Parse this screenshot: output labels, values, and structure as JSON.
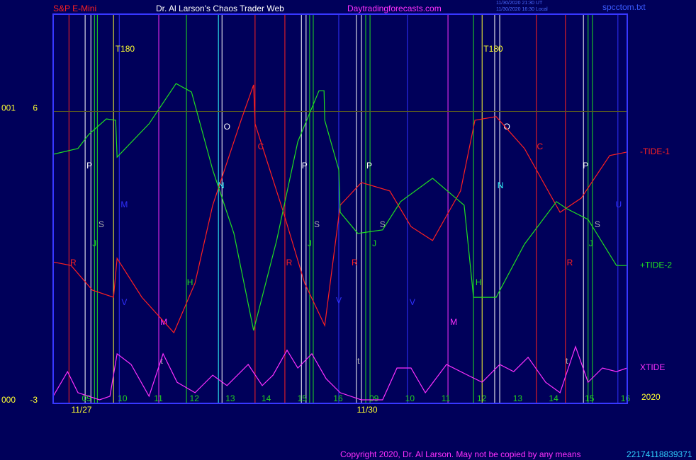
{
  "chart_data": {
    "type": "line",
    "header": {
      "symbol": "S&P E-Mini",
      "site_title": "Dr. Al Larson's Chaos Trader Web",
      "url": "Daytradingforecasts.com",
      "time_ut": "11/30/2020 21:30 UT",
      "time_local": "11/30/2020 16:30 Local",
      "file": "spcctom.txt"
    },
    "footer": {
      "copyright": "Copyright 2020, Dr. Al Larson. May not be copied by any means",
      "code": "22174118839371"
    },
    "xlim": [
      -0.93,
      15.05
    ],
    "ylim": [
      -3,
      9
    ],
    "yticks": [
      -3,
      6
    ],
    "ytick_codes": [
      "000",
      "001"
    ],
    "grid": true,
    "grid_color": "#5a5a20",
    "xticks": [
      {
        "value": 0,
        "label": "09"
      },
      {
        "value": 1,
        "label": "10"
      },
      {
        "value": 2,
        "label": "11"
      },
      {
        "value": 3,
        "label": "12"
      },
      {
        "value": 4,
        "label": "13"
      },
      {
        "value": 5,
        "label": "14"
      },
      {
        "value": 6,
        "label": "15"
      },
      {
        "value": 7,
        "label": "16"
      },
      {
        "value": 8,
        "label": "09"
      },
      {
        "value": 9,
        "label": "10"
      },
      {
        "value": 10,
        "label": "11"
      },
      {
        "value": 11,
        "label": "12"
      },
      {
        "value": 12,
        "label": "13"
      },
      {
        "value": 13,
        "label": "14"
      },
      {
        "value": 14,
        "label": "15"
      },
      {
        "value": 15,
        "label": "16"
      }
    ],
    "dates": [
      {
        "value": -0.14,
        "label": "11/27"
      },
      {
        "value": 7.81,
        "label": "11/30"
      }
    ],
    "year": "2020",
    "series": [
      {
        "name": "-TIDE-1",
        "color": "#ff2020",
        "x": [
          -0.93,
          -0.43,
          0.16,
          0.75,
          0.85,
          1.54,
          2.43,
          3.02,
          3.51,
          4.3,
          4.65,
          4.69,
          5.48,
          6.07,
          6.63,
          7.06,
          7.65,
          8.44,
          9.03,
          9.63,
          10.41,
          10.81,
          11.4,
          12.19,
          13.18,
          13.77,
          14.56,
          15.05
        ],
        "values": [
          1.36,
          1.25,
          0.49,
          0.27,
          1.47,
          0.27,
          -0.82,
          0.71,
          3.11,
          5.73,
          6.82,
          5.62,
          2.89,
          0.71,
          -0.6,
          3.11,
          3.81,
          3.55,
          2.45,
          2.02,
          3.55,
          5.73,
          5.84,
          4.86,
          2.89,
          3.33,
          4.64,
          4.75
        ]
      },
      {
        "name": "+TIDE-2",
        "color": "#20e020",
        "x": [
          -0.93,
          -0.24,
          0.06,
          0.55,
          0.81,
          0.85,
          1.74,
          2.49,
          2.92,
          3.51,
          4.1,
          4.65,
          5.29,
          5.88,
          6.47,
          6.61,
          6.63,
          7.02,
          7.06,
          7.55,
          8.24,
          8.74,
          9.63,
          10.51,
          10.77,
          11.4,
          12.19,
          13.08,
          13.37,
          13.96,
          14.75,
          15.05
        ],
        "values": [
          4.68,
          4.86,
          5.29,
          5.77,
          5.73,
          4.59,
          5.62,
          6.86,
          6.6,
          4.2,
          2.24,
          -0.75,
          2.02,
          5.07,
          6.64,
          6.64,
          5.73,
          4.2,
          2.89,
          2.24,
          2.35,
          3.22,
          3.94,
          3.11,
          0.27,
          0.27,
          1.91,
          3.22,
          3.0,
          2.67,
          1.25,
          1.25
        ]
      },
      {
        "name": "XTIDE",
        "color": "#ff30ff",
        "x": [
          -0.93,
          -0.53,
          -0.24,
          0.36,
          0.65,
          0.85,
          1.24,
          1.74,
          2.13,
          2.52,
          3.02,
          3.51,
          3.91,
          4.5,
          4.89,
          5.19,
          5.58,
          5.88,
          6.27,
          6.67,
          7.06,
          7.65,
          8.24,
          8.64,
          9.03,
          9.43,
          10.02,
          10.61,
          11.01,
          11.5,
          11.89,
          12.29,
          12.78,
          13.18,
          13.61,
          13.96,
          14.36,
          14.75,
          15.05
        ],
        "values": [
          -2.78,
          -2.02,
          -2.67,
          -2.89,
          -2.78,
          -1.47,
          -1.8,
          -2.78,
          -1.47,
          -2.35,
          -2.67,
          -2.13,
          -2.45,
          -1.8,
          -2.45,
          -2.13,
          -1.36,
          -1.91,
          -1.47,
          -2.24,
          -2.67,
          -2.89,
          -2.89,
          -1.91,
          -1.91,
          -2.67,
          -1.8,
          -2.13,
          -2.35,
          -1.8,
          -2.02,
          -1.58,
          -2.35,
          -2.67,
          -1.25,
          -2.35,
          -1.91,
          -2.02,
          -1.91
        ]
      }
    ],
    "series_labels_y": [
      4.75,
      1.25,
      -1.91
    ],
    "vlines": [
      {
        "x": -0.49,
        "color": "#ff2020"
      },
      {
        "x": -0.04,
        "color": "#ffffff"
      },
      {
        "x": 0.12,
        "color": "#ffffff"
      },
      {
        "x": 0.22,
        "color": "#20e020"
      },
      {
        "x": 0.3,
        "color": "#20e020"
      },
      {
        "x": 0.75,
        "color": "#ffff30"
      },
      {
        "x": 0.91,
        "color": "#3030ff"
      },
      {
        "x": 2.01,
        "color": "#ff30ff"
      },
      {
        "x": 2.78,
        "color": "#20e020"
      },
      {
        "x": 3.67,
        "color": "#30ffff"
      },
      {
        "x": 3.77,
        "color": "#ffffff"
      },
      {
        "x": 4.69,
        "color": "#ff2020"
      },
      {
        "x": 5.52,
        "color": "#ff2020"
      },
      {
        "x": 5.98,
        "color": "#ffffff"
      },
      {
        "x": 6.11,
        "color": "#ffffff"
      },
      {
        "x": 6.21,
        "color": "#20e020"
      },
      {
        "x": 6.31,
        "color": "#20e020"
      },
      {
        "x": 7.02,
        "color": "#3030ff"
      },
      {
        "x": 7.51,
        "color": "#ffffff"
      },
      {
        "x": 7.65,
        "color": "#ffffff"
      },
      {
        "x": 7.77,
        "color": "#20e020"
      },
      {
        "x": 7.89,
        "color": "#20e020"
      },
      {
        "x": 8.93,
        "color": "#3030ff"
      },
      {
        "x": 10.06,
        "color": "#ff30ff"
      },
      {
        "x": 10.77,
        "color": "#20e020"
      },
      {
        "x": 11.01,
        "color": "#ffff30"
      },
      {
        "x": 11.36,
        "color": "#ffffff"
      },
      {
        "x": 11.5,
        "color": "#ffffff"
      },
      {
        "x": 12.52,
        "color": "#ff2020"
      },
      {
        "x": 13.33,
        "color": "#ff2020"
      },
      {
        "x": 13.83,
        "color": "#ffffff"
      },
      {
        "x": 13.96,
        "color": "#20e020"
      },
      {
        "x": 14.08,
        "color": "#20e020"
      },
      {
        "x": 14.79,
        "color": "#3030ff"
      }
    ],
    "annotations": [
      {
        "text": "T180",
        "x": 1.07,
        "y": 7.91,
        "color": "#ffff30"
      },
      {
        "text": "P",
        "x": 0.08,
        "y": 4.31,
        "color": "#ffffff"
      },
      {
        "text": "J",
        "x": 0.22,
        "y": 1.91,
        "color": "#20e020"
      },
      {
        "text": "S",
        "x": 0.41,
        "y": 2.5,
        "color": "#b0b0b0"
      },
      {
        "text": "R",
        "x": -0.37,
        "y": 1.32,
        "color": "#ff2020"
      },
      {
        "text": "M",
        "x": 1.05,
        "y": 3.11,
        "color": "#3030ff"
      },
      {
        "text": "V",
        "x": 1.05,
        "y": 0.1,
        "color": "#3030ff"
      },
      {
        "text": "M",
        "x": 2.15,
        "y": -0.51,
        "color": "#ff30ff"
      },
      {
        "text": "t",
        "x": 2.09,
        "y": -1.71,
        "color": "#b0b0b0"
      },
      {
        "text": "H",
        "x": 2.88,
        "y": 0.71,
        "color": "#20e020"
      },
      {
        "text": "O",
        "x": 3.91,
        "y": 5.51,
        "color": "#ffffff"
      },
      {
        "text": "N",
        "x": 3.75,
        "y": 3.7,
        "color": "#30ffff"
      },
      {
        "text": "C",
        "x": 4.85,
        "y": 4.9,
        "color": "#ff2020"
      },
      {
        "text": "R",
        "x": 5.64,
        "y": 1.32,
        "color": "#ff2020"
      },
      {
        "text": "P",
        "x": 6.07,
        "y": 4.31,
        "color": "#ffffff"
      },
      {
        "text": "S",
        "x": 6.41,
        "y": 2.5,
        "color": "#b0b0b0"
      },
      {
        "text": "J",
        "x": 6.21,
        "y": 1.91,
        "color": "#20e020"
      },
      {
        "text": "V",
        "x": 7.02,
        "y": 0.16,
        "color": "#3030ff"
      },
      {
        "text": "R",
        "x": 7.46,
        "y": 1.32,
        "color": "#ff2020"
      },
      {
        "text": "P",
        "x": 7.87,
        "y": 4.31,
        "color": "#ffffff"
      },
      {
        "text": "S",
        "x": 8.24,
        "y": 2.5,
        "color": "#b0b0b0"
      },
      {
        "text": "J",
        "x": 8.01,
        "y": 1.91,
        "color": "#20e020"
      },
      {
        "text": "t",
        "x": 7.57,
        "y": -1.71,
        "color": "#b0b0b0"
      },
      {
        "text": "V",
        "x": 9.07,
        "y": 0.1,
        "color": "#3030ff"
      },
      {
        "text": "M",
        "x": 10.22,
        "y": -0.51,
        "color": "#ff30ff"
      },
      {
        "text": "T180",
        "x": 11.32,
        "y": 7.91,
        "color": "#ffff30"
      },
      {
        "text": "H",
        "x": 10.91,
        "y": 0.71,
        "color": "#20e020"
      },
      {
        "text": "O",
        "x": 11.7,
        "y": 5.51,
        "color": "#ffffff"
      },
      {
        "text": "N",
        "x": 11.52,
        "y": 3.7,
        "color": "#30ffff"
      },
      {
        "text": "C",
        "x": 12.62,
        "y": 4.9,
        "color": "#ff2020"
      },
      {
        "text": "R",
        "x": 13.45,
        "y": 1.32,
        "color": "#ff2020"
      },
      {
        "text": "P",
        "x": 13.89,
        "y": 4.31,
        "color": "#ffffff"
      },
      {
        "text": "S",
        "x": 14.22,
        "y": 2.5,
        "color": "#b0b0b0"
      },
      {
        "text": "J",
        "x": 14.04,
        "y": 1.91,
        "color": "#20e020"
      },
      {
        "text": "t",
        "x": 13.37,
        "y": -1.71,
        "color": "#b0b0b0"
      },
      {
        "text": "U",
        "x": 14.81,
        "y": 3.11,
        "color": "#3030ff"
      }
    ]
  }
}
